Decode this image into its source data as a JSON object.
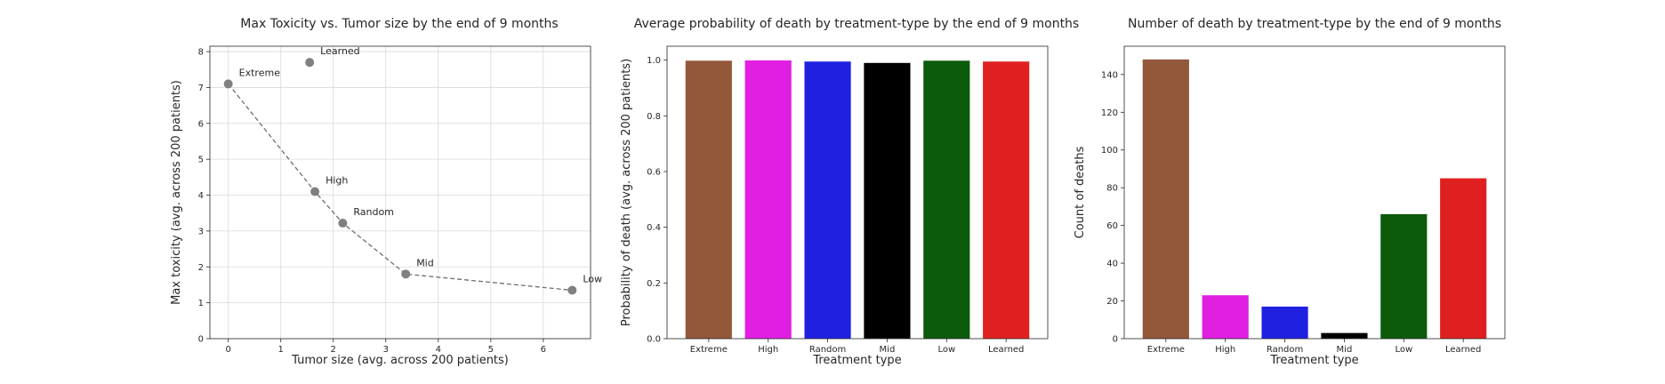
{
  "chart_data": [
    {
      "type": "scatter",
      "title": "Max Toxicity vs. Tumor size by the end of 9 months",
      "xlabel": "Tumor size (avg. across 200 patients)",
      "ylabel": "Max toxicity (avg. across 200 patients)",
      "xlim": [
        -0.35,
        6.9
      ],
      "ylim": [
        0,
        8.15
      ],
      "xticks": [
        0,
        1,
        2,
        3,
        4,
        5,
        6
      ],
      "yticks": [
        0,
        1,
        2,
        3,
        4,
        5,
        6,
        7,
        8
      ],
      "grid": true,
      "marker_color": "#808080",
      "line_style": "dashed",
      "points": [
        {
          "label": "Extreme",
          "x": 0.0,
          "y": 7.1
        },
        {
          "label": "Learned",
          "x": 1.55,
          "y": 7.7
        },
        {
          "label": "High",
          "x": 1.65,
          "y": 4.1
        },
        {
          "label": "Random",
          "x": 2.18,
          "y": 3.22
        },
        {
          "label": "Mid",
          "x": 3.38,
          "y": 1.8
        },
        {
          "label": "Low",
          "x": 6.55,
          "y": 1.35
        }
      ],
      "line_order": [
        "Extreme",
        "High",
        "Random",
        "Mid",
        "Low"
      ]
    },
    {
      "type": "bar",
      "title": "Average probability of death by treatment-type by the end of 9 months",
      "xlabel": "Treatment type",
      "ylabel": "Probability of death (avg. across 200 patients)",
      "ylim": [
        0,
        1.05
      ],
      "yticks": [
        0.0,
        0.2,
        0.4,
        0.6,
        0.8,
        1.0
      ],
      "grid": false,
      "categories": [
        "Extreme",
        "High",
        "Random",
        "Mid",
        "Low",
        "Learned"
      ],
      "values": [
        0.998,
        0.999,
        0.995,
        0.99,
        0.998,
        0.995
      ],
      "colors": [
        "#93573a",
        "#e11fe1",
        "#2020e1",
        "#000000",
        "#0c5a0c",
        "#e02020"
      ]
    },
    {
      "type": "bar",
      "title": "Number of death by treatment-type by the end of 9 months",
      "xlabel": "Treatment type",
      "ylabel": "Count of deaths",
      "ylim": [
        0,
        155
      ],
      "yticks": [
        0,
        20,
        40,
        60,
        80,
        100,
        120,
        140
      ],
      "grid": false,
      "categories": [
        "Extreme",
        "High",
        "Random",
        "Mid",
        "Low",
        "Learned"
      ],
      "values": [
        148,
        23,
        17,
        3,
        66,
        85
      ],
      "colors": [
        "#93573a",
        "#e11fe1",
        "#2020e1",
        "#000000",
        "#0c5a0c",
        "#e02020"
      ]
    }
  ]
}
